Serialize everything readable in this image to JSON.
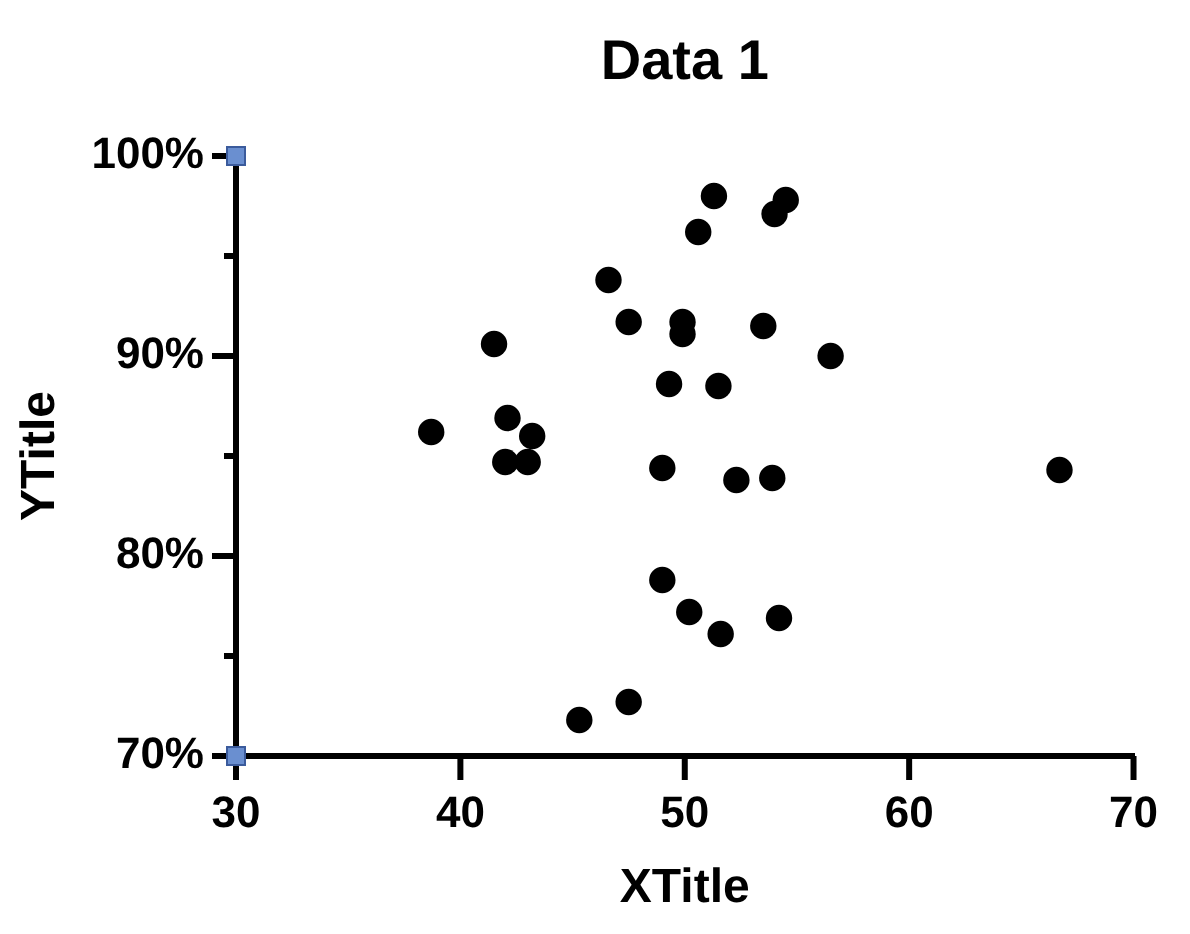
{
  "chart_data": {
    "type": "scatter",
    "title": "Data 1",
    "xlabel": "XTitle",
    "ylabel": "YTitle",
    "x": [
      38.7,
      41.5,
      42.1,
      42.0,
      43.0,
      43.2,
      45.3,
      46.6,
      47.5,
      47.5,
      49.0,
      49.0,
      49.3,
      49.9,
      49.9,
      50.2,
      50.6,
      51.3,
      51.5,
      51.6,
      52.3,
      53.5,
      53.9,
      54.0,
      54.2,
      54.5,
      56.5,
      66.7
    ],
    "series": [
      {
        "color": "#000000",
        "values": [
          86.2,
          90.6,
          86.9,
          84.7,
          84.7,
          86.0,
          71.8,
          93.8,
          91.7,
          72.7,
          84.4,
          78.8,
          88.6,
          91.7,
          91.1,
          77.2,
          96.2,
          98.0,
          88.5,
          76.1,
          83.8,
          91.5,
          83.9,
          97.1,
          76.9,
          97.8,
          90.0,
          84.3
        ]
      }
    ],
    "xlim": [
      30,
      70
    ],
    "xticks": [
      30,
      40,
      50,
      60,
      70
    ],
    "ylim": [
      70,
      100
    ],
    "yticks": [
      {
        "value": 70,
        "label": "70%"
      },
      {
        "value": 75,
        "label": null
      },
      {
        "value": 80,
        "label": "80%"
      },
      {
        "value": 85,
        "label": null
      },
      {
        "value": 90,
        "label": "90%"
      },
      {
        "value": 95,
        "label": null
      },
      {
        "value": 100,
        "label": "100%"
      }
    ],
    "marker": "circle",
    "grid": false,
    "legend": false
  }
}
